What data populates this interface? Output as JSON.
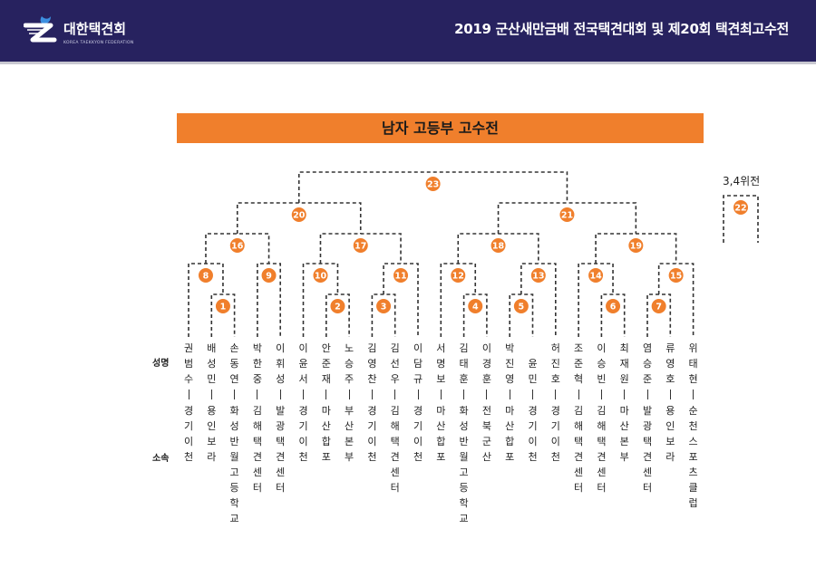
{
  "header": {
    "logo_text": "대한택견회",
    "logo_subtext": "KOREA TAEKKYON FEDERATION",
    "title": "2019 군산새만금배 전국택견대회 및 제20회 택견최고수전"
  },
  "banner": {
    "title": "남자 고등부 고수전"
  },
  "colors": {
    "header_bg": "#27225f",
    "accent": "#f07f2c",
    "line": "#333333"
  },
  "row_labels": {
    "name": "성명",
    "affiliation": "소속"
  },
  "third_place": {
    "label": "3,4위전",
    "match": 22
  },
  "players": [
    {
      "name": "권범수",
      "team": "경기이천"
    },
    {
      "name": "배성민",
      "team": "용인보라"
    },
    {
      "name": "손동연",
      "team": "화성반월고등학교"
    },
    {
      "name": "박한중",
      "team": "김해택견센터"
    },
    {
      "name": "이휘성",
      "team": "발광택견센터"
    },
    {
      "name": "이윤서",
      "team": "경기이천"
    },
    {
      "name": "안준재",
      "team": "마산합포"
    },
    {
      "name": "노승주",
      "team": "부산본부"
    },
    {
      "name": "김영찬",
      "team": "경기이천"
    },
    {
      "name": "김선우",
      "team": "김해택견센터"
    },
    {
      "name": "이담규",
      "team": "경기이천"
    },
    {
      "name": "서명보",
      "team": "마산합포"
    },
    {
      "name": "김태훈",
      "team": "화성반월고등학교"
    },
    {
      "name": "이경훈",
      "team": "전북군산"
    },
    {
      "name": "박진영",
      "team": "마산합포"
    },
    {
      "name": "윤민",
      "team": "경기이천"
    },
    {
      "name": "허진호",
      "team": "경기이천"
    },
    {
      "name": "조준혁",
      "team": "김해택견센터"
    },
    {
      "name": "이승빈",
      "team": "김해택견센터"
    },
    {
      "name": "최재원",
      "team": "마산본부"
    },
    {
      "name": "염승준",
      "team": "발광택견센터"
    },
    {
      "name": "류영호",
      "team": "용인보라"
    },
    {
      "name": "위태현",
      "team": "순천스포츠클럽"
    }
  ],
  "matches": [
    {
      "no": 1,
      "round": 1,
      "left": {
        "player": 1
      },
      "right": {
        "player": 2
      }
    },
    {
      "no": 2,
      "round": 1,
      "left": {
        "player": 6
      },
      "right": {
        "player": 7
      }
    },
    {
      "no": 3,
      "round": 1,
      "left": {
        "player": 8
      },
      "right": {
        "player": 9
      }
    },
    {
      "no": 4,
      "round": 1,
      "left": {
        "player": 12
      },
      "right": {
        "player": 13
      }
    },
    {
      "no": 5,
      "round": 1,
      "left": {
        "player": 14
      },
      "right": {
        "player": 15
      }
    },
    {
      "no": 6,
      "round": 1,
      "left": {
        "player": 18
      },
      "right": {
        "player": 19
      }
    },
    {
      "no": 7,
      "round": 1,
      "left": {
        "player": 20
      },
      "right": {
        "player": 21
      }
    },
    {
      "no": 8,
      "round": 2,
      "left": {
        "player": 0
      },
      "right": {
        "match": 1
      }
    },
    {
      "no": 9,
      "round": 2,
      "left": {
        "player": 3
      },
      "right": {
        "player": 4
      }
    },
    {
      "no": 10,
      "round": 2,
      "left": {
        "player": 5
      },
      "right": {
        "match": 2
      }
    },
    {
      "no": 11,
      "round": 2,
      "left": {
        "match": 3
      },
      "right": {
        "player": 10
      }
    },
    {
      "no": 12,
      "round": 2,
      "left": {
        "player": 11
      },
      "right": {
        "match": 4
      }
    },
    {
      "no": 13,
      "round": 2,
      "left": {
        "match": 5
      },
      "right": {
        "player": 16
      }
    },
    {
      "no": 14,
      "round": 2,
      "left": {
        "player": 17
      },
      "right": {
        "match": 6
      }
    },
    {
      "no": 15,
      "round": 2,
      "left": {
        "match": 7
      },
      "right": {
        "player": 22
      }
    },
    {
      "no": 16,
      "round": 3,
      "left": {
        "match": 8
      },
      "right": {
        "match": 9
      }
    },
    {
      "no": 17,
      "round": 3,
      "left": {
        "match": 10
      },
      "right": {
        "match": 11
      }
    },
    {
      "no": 18,
      "round": 3,
      "left": {
        "match": 12
      },
      "right": {
        "match": 13
      }
    },
    {
      "no": 19,
      "round": 3,
      "left": {
        "match": 14
      },
      "right": {
        "match": 15
      }
    },
    {
      "no": 20,
      "round": 4,
      "left": {
        "match": 16
      },
      "right": {
        "match": 17
      }
    },
    {
      "no": 21,
      "round": 4,
      "left": {
        "match": 18
      },
      "right": {
        "match": 19
      }
    },
    {
      "no": 23,
      "round": 5,
      "left": {
        "match": 20
      },
      "right": {
        "match": 21
      }
    }
  ]
}
